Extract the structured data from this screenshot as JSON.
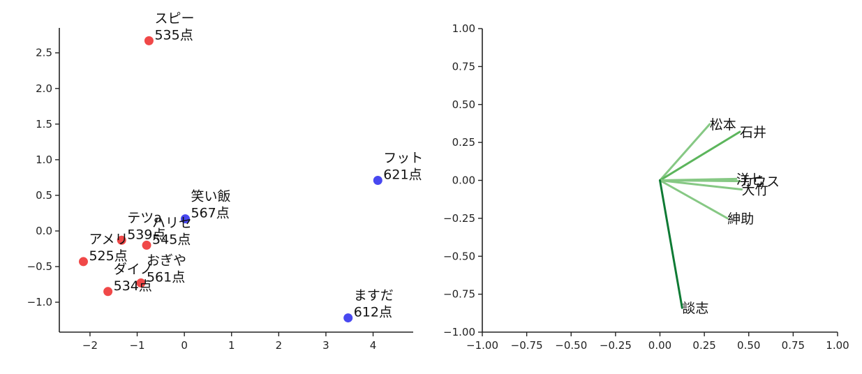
{
  "chart_data": [
    {
      "type": "scatter",
      "xlim": [
        -2.65,
        4.85
      ],
      "ylim": [
        -1.42,
        2.85
      ],
      "x_ticks": [
        -2,
        -1,
        0,
        1,
        2,
        3,
        4
      ],
      "y_ticks": [
        -1.0,
        -0.5,
        0.0,
        0.5,
        1.0,
        1.5,
        2.0,
        2.5
      ],
      "x_tick_labels": [
        "−2",
        "−1",
        "0",
        "1",
        "2",
        "3",
        "4"
      ],
      "y_tick_labels": [
        "−1.0",
        "−0.5",
        "0.0",
        "0.5",
        "1.0",
        "1.5",
        "2.0",
        "2.5"
      ],
      "grid": false,
      "colors": {
        "red": "#f04848",
        "blue": "#4848f0"
      },
      "points": [
        {
          "x": -0.75,
          "y": 2.67,
          "color": "red",
          "label": "スピー\n535点"
        },
        {
          "x": 4.1,
          "y": 0.71,
          "color": "blue",
          "label": "フット\n621点"
        },
        {
          "x": 0.02,
          "y": 0.17,
          "color": "blue",
          "label": "笑い飯\n567点"
        },
        {
          "x": -1.33,
          "y": -0.13,
          "color": "red",
          "label": "テツa\n539点"
        },
        {
          "x": -0.8,
          "y": -0.2,
          "color": "red",
          "label": "ハリセ\n545点"
        },
        {
          "x": -2.14,
          "y": -0.43,
          "color": "red",
          "label": "アメリ\n525点"
        },
        {
          "x": -0.92,
          "y": -0.73,
          "color": "red",
          "label": "おぎや\n561点"
        },
        {
          "x": -1.62,
          "y": -0.85,
          "color": "red",
          "label": "ダイノ\n534点"
        },
        {
          "x": 3.47,
          "y": -1.22,
          "color": "blue",
          "label": "ますだ\n612点"
        }
      ]
    },
    {
      "type": "line",
      "xlim": [
        -1.0,
        1.0
      ],
      "ylim": [
        -1.0,
        1.0
      ],
      "x_ticks": [
        -1.0,
        -0.75,
        -0.5,
        -0.25,
        0.0,
        0.25,
        0.5,
        0.75,
        1.0
      ],
      "y_ticks": [
        -1.0,
        -0.75,
        -0.5,
        -0.25,
        0.0,
        0.25,
        0.5,
        0.75,
        1.0
      ],
      "x_tick_labels": [
        "−1.00",
        "−0.75",
        "−0.50",
        "−0.25",
        "0.00",
        "0.25",
        "0.50",
        "0.75",
        "1.00"
      ],
      "y_tick_labels": [
        "−1.00",
        "−0.75",
        "−0.50",
        "−0.25",
        "0.00",
        "0.25",
        "0.50",
        "0.75",
        "1.00"
      ],
      "grid": false,
      "vectors": [
        {
          "name": "松本",
          "x": 0.28,
          "y": 0.37,
          "color": "#86c884"
        },
        {
          "name": "石井",
          "x": 0.45,
          "y": 0.32,
          "color": "#5cb55c"
        },
        {
          "name": "洋七",
          "x": 0.43,
          "y": 0.01,
          "color": "#86c884"
        },
        {
          "name": "カウス",
          "x": 0.45,
          "y": -0.005,
          "color": "#86c884"
        },
        {
          "name": "大竹",
          "x": 0.46,
          "y": -0.06,
          "color": "#86c884"
        },
        {
          "name": "紳助",
          "x": 0.38,
          "y": -0.25,
          "color": "#86c884"
        },
        {
          "name": "談志",
          "x": 0.125,
          "y": -0.84,
          "color": "#0e7a34"
        }
      ]
    }
  ]
}
